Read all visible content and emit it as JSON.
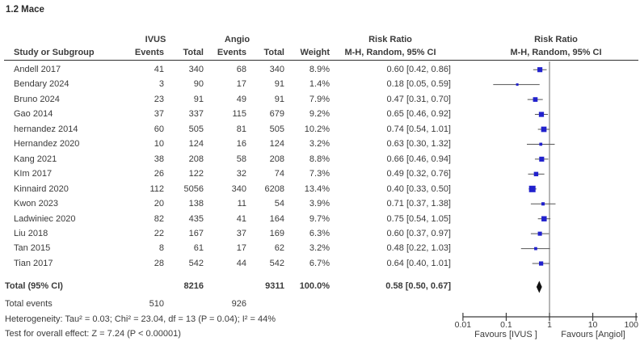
{
  "title": "1.2 Mace",
  "header": {
    "study": "Study or Subgroup",
    "group_left": "IVUS",
    "group_right": "Angio",
    "events": "Events",
    "total": "Total",
    "weight": "Weight",
    "risk_ratio": "Risk Ratio",
    "method": "M-H, Random, 95% CI"
  },
  "chart_data": {
    "type": "scatter",
    "subtype": "forest_plot_meta_analysis",
    "title": "1.2 Mace",
    "effect_label": "Risk Ratio",
    "method_label": "M-H, Random, 95% CI",
    "x_scale": "log",
    "x_ticks": [
      "0.01",
      "0.1",
      "1",
      "10",
      "100"
    ],
    "x_tick_values": [
      0.01,
      0.1,
      1,
      10,
      100
    ],
    "xlim": [
      0.01,
      100
    ],
    "favours_left": "Favours [IVUS ]",
    "favours_right": "Favours [Angiol]",
    "marker_color": "#2121cd",
    "ci_line_color": "#555555",
    "diamond_color": "#111111",
    "studies": [
      {
        "name": "Andell 2017",
        "ivus_events": "41",
        "ivus_total": "340",
        "angio_events": "68",
        "angio_total": "340",
        "weight": "8.9%",
        "weight_pct": 8.9,
        "rr": 0.6,
        "ci_low": 0.42,
        "ci_high": 0.86,
        "rr_text": "0.60 [0.42, 0.86]"
      },
      {
        "name": "Bendary 2024",
        "ivus_events": "3",
        "ivus_total": "90",
        "angio_events": "17",
        "angio_total": "91",
        "weight": "1.4%",
        "weight_pct": 1.4,
        "rr": 0.18,
        "ci_low": 0.05,
        "ci_high": 0.59,
        "rr_text": "0.18 [0.05, 0.59]"
      },
      {
        "name": "Bruno 2024",
        "ivus_events": "23",
        "ivus_total": "91",
        "angio_events": "49",
        "angio_total": "91",
        "weight": "7.9%",
        "weight_pct": 7.9,
        "rr": 0.47,
        "ci_low": 0.31,
        "ci_high": 0.7,
        "rr_text": "0.47 [0.31, 0.70]"
      },
      {
        "name": "Gao 2014",
        "ivus_events": "37",
        "ivus_total": "337",
        "angio_events": "115",
        "angio_total": "679",
        "weight": "9.2%",
        "weight_pct": 9.2,
        "rr": 0.65,
        "ci_low": 0.46,
        "ci_high": 0.92,
        "rr_text": "0.65 [0.46, 0.92]"
      },
      {
        "name": "hernandez 2014",
        "ivus_events": "60",
        "ivus_total": "505",
        "angio_events": "81",
        "angio_total": "505",
        "weight": "10.2%",
        "weight_pct": 10.2,
        "rr": 0.74,
        "ci_low": 0.54,
        "ci_high": 1.01,
        "rr_text": "0.74 [0.54, 1.01]"
      },
      {
        "name": "Hernandez 2020",
        "ivus_events": "10",
        "ivus_total": "124",
        "angio_events": "16",
        "angio_total": "124",
        "weight": "3.2%",
        "weight_pct": 3.2,
        "rr": 0.63,
        "ci_low": 0.3,
        "ci_high": 1.32,
        "rr_text": "0.63 [0.30, 1.32]"
      },
      {
        "name": "Kang 2021",
        "ivus_events": "38",
        "ivus_total": "208",
        "angio_events": "58",
        "angio_total": "208",
        "weight": "8.8%",
        "weight_pct": 8.8,
        "rr": 0.66,
        "ci_low": 0.46,
        "ci_high": 0.94,
        "rr_text": "0.66 [0.46, 0.94]"
      },
      {
        "name": "KIm 2017",
        "ivus_events": "26",
        "ivus_total": "122",
        "angio_events": "32",
        "angio_total": "74",
        "weight": "7.3%",
        "weight_pct": 7.3,
        "rr": 0.49,
        "ci_low": 0.32,
        "ci_high": 0.76,
        "rr_text": "0.49 [0.32, 0.76]"
      },
      {
        "name": "Kinnaird 2020",
        "ivus_events": "112",
        "ivus_total": "5056",
        "angio_events": "340",
        "angio_total": "6208",
        "weight": "13.4%",
        "weight_pct": 13.4,
        "rr": 0.4,
        "ci_low": 0.33,
        "ci_high": 0.5,
        "rr_text": "0.40 [0.33, 0.50]"
      },
      {
        "name": "Kwon 2023",
        "ivus_events": "20",
        "ivus_total": "138",
        "angio_events": "11",
        "angio_total": "54",
        "weight": "3.9%",
        "weight_pct": 3.9,
        "rr": 0.71,
        "ci_low": 0.37,
        "ci_high": 1.38,
        "rr_text": "0.71 [0.37, 1.38]"
      },
      {
        "name": "Ladwiniec 2020",
        "ivus_events": "82",
        "ivus_total": "435",
        "angio_events": "41",
        "angio_total": "164",
        "weight": "9.7%",
        "weight_pct": 9.7,
        "rr": 0.75,
        "ci_low": 0.54,
        "ci_high": 1.05,
        "rr_text": "0.75 [0.54, 1.05]"
      },
      {
        "name": "Liu 2018",
        "ivus_events": "22",
        "ivus_total": "167",
        "angio_events": "37",
        "angio_total": "169",
        "weight": "6.3%",
        "weight_pct": 6.3,
        "rr": 0.6,
        "ci_low": 0.37,
        "ci_high": 0.97,
        "rr_text": "0.60 [0.37, 0.97]"
      },
      {
        "name": "Tan 2015",
        "ivus_events": "8",
        "ivus_total": "61",
        "angio_events": "17",
        "angio_total": "62",
        "weight": "3.2%",
        "weight_pct": 3.2,
        "rr": 0.48,
        "ci_low": 0.22,
        "ci_high": 1.03,
        "rr_text": "0.48 [0.22, 1.03]"
      },
      {
        "name": "Tian 2017",
        "ivus_events": "28",
        "ivus_total": "542",
        "angio_events": "44",
        "angio_total": "542",
        "weight": "6.7%",
        "weight_pct": 6.7,
        "rr": 0.64,
        "ci_low": 0.4,
        "ci_high": 1.01,
        "rr_text": "0.64 [0.40, 1.01]"
      }
    ],
    "total": {
      "label": "Total (95% CI)",
      "ivus_total": "8216",
      "angio_total": "9311",
      "weight": "100.0%",
      "rr": 0.58,
      "ci_low": 0.5,
      "ci_high": 0.67,
      "rr_text": "0.58 [0.50, 0.67]"
    },
    "total_events": {
      "label": "Total events",
      "ivus": "510",
      "angio": "926"
    },
    "heterogeneity": "Heterogeneity: Tau² = 0.03; Chi² = 23.04, df = 13 (P = 0.04); I² = 44%",
    "overall_effect": "Test for overall effect: Z = 7.24 (P < 0.00001)"
  }
}
